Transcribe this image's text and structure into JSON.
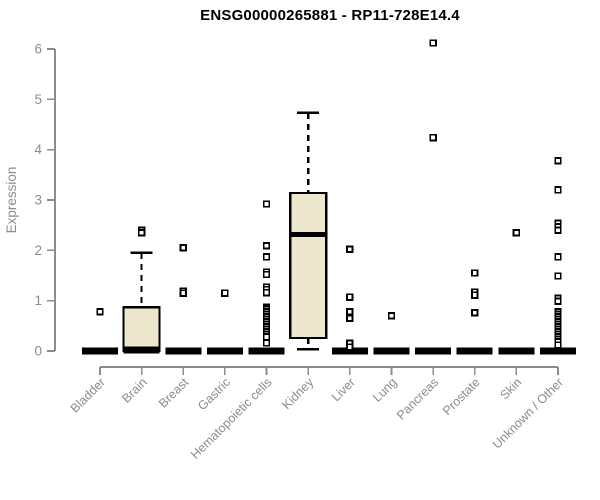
{
  "chart_data": {
    "type": "boxplot",
    "title": "ENSG00000265881 - RP11-728E14.4",
    "ylabel": "Expression",
    "xlabel": "",
    "ylim": [
      0,
      6
    ],
    "yticks": [
      0,
      1,
      2,
      3,
      4,
      5,
      6
    ],
    "grid": false,
    "legend": "none",
    "colors": {
      "box_fill": "#ede8cd",
      "box_stroke": "#000000",
      "outlier_stroke": "#000000",
      "outlier_fill": "#ffffff",
      "axis_color": "#8c8c8c",
      "label_color": "#8c8c8c",
      "title_color": "#000000",
      "background": "#ffffff"
    },
    "categories": [
      "Bladder",
      "Brain",
      "Breast",
      "Gastric",
      "Hematopoietic cells",
      "Kidney",
      "Liver",
      "Lung",
      "Pancreas",
      "Prostate",
      "Skin",
      "Unknown / Other"
    ],
    "series": [
      {
        "category": "Bladder",
        "whisker_low": 0,
        "q1": 0,
        "median": 0,
        "q3": 0,
        "whisker_high": 0,
        "outliers": [
          0.78
        ]
      },
      {
        "category": "Brain",
        "whisker_low": 0,
        "q1": 0,
        "median": 0.02,
        "q3": 0.87,
        "whisker_high": 1.95,
        "outliers": [
          2.4,
          2.35
        ]
      },
      {
        "category": "Breast",
        "whisker_low": 0,
        "q1": 0,
        "median": 0,
        "q3": 0,
        "whisker_high": 0,
        "outliers": [
          2.05,
          1.19,
          1.15
        ]
      },
      {
        "category": "Gastric",
        "whisker_low": 0,
        "q1": 0,
        "median": 0,
        "q3": 0,
        "whisker_high": 0,
        "outliers": [
          1.15
        ]
      },
      {
        "category": "Hematopoietic cells",
        "whisker_low": 0,
        "q1": 0,
        "median": 0,
        "q3": 0,
        "whisker_high": 0,
        "outliers": [
          2.92,
          2.09,
          1.87,
          1.57,
          1.52,
          1.27,
          1.22,
          1.16,
          0.87,
          0.83,
          0.78,
          0.73,
          0.68,
          0.63,
          0.58,
          0.53,
          0.48,
          0.43,
          0.38,
          0.33,
          0.28,
          0.16
        ]
      },
      {
        "category": "Kidney",
        "whisker_low": 0.03,
        "q1": 0.26,
        "median": 2.31,
        "q3": 3.14,
        "whisker_high": 4.73,
        "outliers": []
      },
      {
        "category": "Liver",
        "whisker_low": 0,
        "q1": 0,
        "median": 0,
        "q3": 0,
        "whisker_high": 0,
        "outliers": [
          2.02,
          1.07,
          0.78,
          0.65,
          0.15,
          0.08
        ]
      },
      {
        "category": "Lung",
        "whisker_low": 0,
        "q1": 0,
        "median": 0,
        "q3": 0,
        "whisker_high": 0,
        "outliers": [
          0.7
        ]
      },
      {
        "category": "Pancreas",
        "whisker_low": 0,
        "q1": 0,
        "median": 0,
        "q3": 0,
        "whisker_high": 0,
        "outliers": [
          6.12,
          4.24
        ]
      },
      {
        "category": "Prostate",
        "whisker_low": 0,
        "q1": 0,
        "median": 0,
        "q3": 0,
        "whisker_high": 0,
        "outliers": [
          1.55,
          1.17,
          1.11,
          0.76
        ]
      },
      {
        "category": "Skin",
        "whisker_low": 0,
        "q1": 0,
        "median": 0,
        "q3": 0,
        "whisker_high": 0,
        "outliers": [
          2.35
        ]
      },
      {
        "category": "Unknown / Other",
        "whisker_low": 0,
        "q1": 0,
        "median": 0,
        "q3": 0,
        "whisker_high": 0,
        "outliers": [
          3.78,
          3.2,
          2.54,
          2.47,
          2.4,
          1.87,
          1.49,
          1.05,
          0.99,
          0.78,
          0.73,
          0.68,
          0.63,
          0.58,
          0.53,
          0.48,
          0.43,
          0.38,
          0.33,
          0.28,
          0.23,
          0.18,
          0.12
        ]
      }
    ]
  }
}
